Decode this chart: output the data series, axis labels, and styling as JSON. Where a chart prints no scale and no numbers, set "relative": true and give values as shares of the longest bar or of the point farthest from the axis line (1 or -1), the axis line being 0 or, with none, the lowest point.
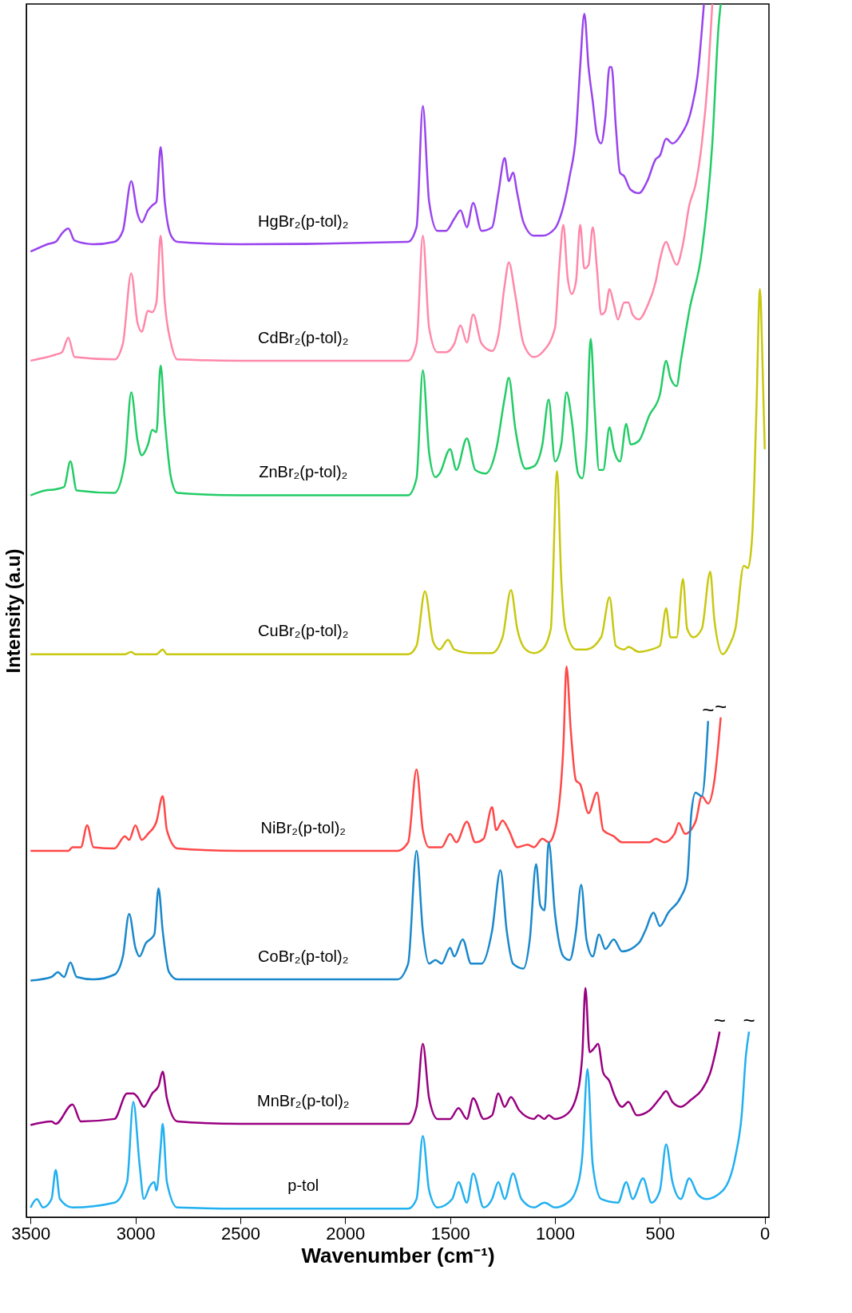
{
  "chart_data": {
    "type": "line",
    "relative": true,
    "xlabel": "Wavenumber (cm⁻¹)",
    "ylabel": "Intensity (a.u)",
    "xlim": [
      3520,
      -20
    ],
    "xticks": [
      3500,
      3000,
      2500,
      2000,
      1500,
      1000,
      500,
      0
    ],
    "grid": false,
    "legend": false,
    "marker": "none",
    "line_style": "solid",
    "series": [
      {
        "name": "HgBr₂(p-tol)₂",
        "color": "#9944ee",
        "x": [
          3500,
          3460,
          3420,
          3380,
          3350,
          3320,
          3290,
          3200,
          3100,
          3060,
          3020,
          2990,
          2970,
          2940,
          2920,
          2900,
          2880,
          2860,
          2830,
          2800,
          2500,
          1700,
          1660,
          1630,
          1600,
          1560,
          1520,
          1480,
          1450,
          1420,
          1390,
          1350,
          1300,
          1270,
          1240,
          1220,
          1200,
          1180,
          1150,
          1100,
          1060,
          1000,
          970,
          930,
          900,
          880,
          860,
          840,
          820,
          800,
          780,
          760,
          740,
          730,
          710,
          690,
          670,
          640,
          600,
          560,
          520,
          500,
          470,
          440,
          400,
          350,
          320,
          290
        ],
        "values": [
          0.796,
          0.799,
          0.802,
          0.804,
          0.811,
          0.815,
          0.805,
          0.802,
          0.804,
          0.813,
          0.854,
          0.827,
          0.82,
          0.83,
          0.834,
          0.837,
          0.882,
          0.837,
          0.809,
          0.804,
          0.802,
          0.804,
          0.816,
          0.916,
          0.837,
          0.813,
          0.813,
          0.823,
          0.83,
          0.816,
          0.836,
          0.813,
          0.816,
          0.844,
          0.873,
          0.854,
          0.861,
          0.844,
          0.82,
          0.809,
          0.809,
          0.815,
          0.827,
          0.858,
          0.892,
          0.948,
          0.992,
          0.948,
          0.92,
          0.892,
          0.885,
          0.906,
          0.948,
          0.948,
          0.899,
          0.861,
          0.858,
          0.847,
          0.844,
          0.854,
          0.872,
          0.875,
          0.889,
          0.885,
          0.892,
          0.913,
          0.941,
          1.0
        ]
      },
      {
        "name": "CdBr₂(p-tol)₂",
        "color": "#ff88aa",
        "x": [
          3500,
          3420,
          3380,
          3350,
          3320,
          3290,
          3100,
          3060,
          3020,
          2990,
          2970,
          2940,
          2920,
          2900,
          2880,
          2860,
          2830,
          2800,
          2500,
          1700,
          1660,
          1630,
          1600,
          1560,
          1520,
          1480,
          1450,
          1420,
          1390,
          1350,
          1300,
          1270,
          1240,
          1220,
          1190,
          1150,
          1100,
          1060,
          1000,
          980,
          960,
          940,
          920,
          900,
          880,
          860,
          840,
          820,
          800,
          780,
          760,
          740,
          720,
          700,
          670,
          650,
          630,
          600,
          560,
          520,
          500,
          470,
          450,
          420,
          390,
          360,
          330,
          300,
          270,
          250
        ],
        "values": [
          0.706,
          0.709,
          0.711,
          0.713,
          0.725,
          0.709,
          0.707,
          0.72,
          0.778,
          0.737,
          0.73,
          0.747,
          0.746,
          0.754,
          0.809,
          0.754,
          0.72,
          0.707,
          0.706,
          0.706,
          0.72,
          0.809,
          0.733,
          0.713,
          0.713,
          0.72,
          0.735,
          0.721,
          0.744,
          0.72,
          0.714,
          0.727,
          0.768,
          0.787,
          0.761,
          0.72,
          0.709,
          0.713,
          0.733,
          0.782,
          0.818,
          0.775,
          0.761,
          0.771,
          0.818,
          0.782,
          0.785,
          0.816,
          0.782,
          0.744,
          0.747,
          0.765,
          0.753,
          0.74,
          0.754,
          0.754,
          0.744,
          0.74,
          0.751,
          0.771,
          0.789,
          0.804,
          0.796,
          0.785,
          0.802,
          0.834,
          0.851,
          0.885,
          0.941,
          1.0
        ]
      },
      {
        "name": "ZnBr₂(p-tol)₂",
        "color": "#22cc66",
        "x": [
          3500,
          3430,
          3380,
          3340,
          3310,
          3280,
          3100,
          3050,
          3020,
          2990,
          2970,
          2940,
          2920,
          2900,
          2880,
          2860,
          2830,
          2800,
          2500,
          1700,
          1660,
          1630,
          1600,
          1570,
          1550,
          1500,
          1470,
          1420,
          1380,
          1330,
          1280,
          1240,
          1220,
          1190,
          1140,
          1100,
          1060,
          1030,
          1000,
          970,
          945,
          920,
          890,
          870,
          850,
          830,
          810,
          790,
          770,
          740,
          720,
          690,
          660,
          640,
          600,
          550,
          500,
          470,
          450,
          420,
          400,
          380,
          360,
          300,
          250,
          220,
          210
        ],
        "values": [
          0.595,
          0.599,
          0.6,
          0.602,
          0.623,
          0.599,
          0.597,
          0.623,
          0.68,
          0.64,
          0.628,
          0.637,
          0.649,
          0.647,
          0.702,
          0.657,
          0.609,
          0.597,
          0.595,
          0.595,
          0.609,
          0.698,
          0.63,
          0.61,
          0.613,
          0.633,
          0.616,
          0.642,
          0.616,
          0.613,
          0.633,
          0.675,
          0.692,
          0.651,
          0.617,
          0.619,
          0.637,
          0.674,
          0.623,
          0.637,
          0.68,
          0.657,
          0.613,
          0.609,
          0.642,
          0.724,
          0.664,
          0.616,
          0.616,
          0.651,
          0.633,
          0.623,
          0.654,
          0.637,
          0.64,
          0.661,
          0.678,
          0.706,
          0.692,
          0.685,
          0.706,
          0.727,
          0.747,
          0.796,
          0.885,
          0.982,
          1.0
        ]
      },
      {
        "name": "CuBr₂(p-tol)₂",
        "color": "#c8c810",
        "x": [
          3500,
          3050,
          3020,
          3000,
          2900,
          2870,
          2850,
          2500,
          1700,
          1660,
          1620,
          1580,
          1550,
          1510,
          1480,
          1400,
          1300,
          1250,
          1210,
          1180,
          1140,
          1100,
          1060,
          1020,
          990,
          970,
          950,
          900,
          850,
          780,
          740,
          710,
          670,
          650,
          600,
          540,
          500,
          470,
          450,
          420,
          390,
          370,
          340,
          300,
          260,
          240,
          200,
          170,
          140,
          100,
          80,
          60,
          40,
          23,
          10,
          0
        ],
        "values": [
          0.464,
          0.464,
          0.466,
          0.464,
          0.464,
          0.468,
          0.464,
          0.464,
          0.464,
          0.471,
          0.516,
          0.474,
          0.468,
          0.476,
          0.468,
          0.465,
          0.465,
          0.478,
          0.517,
          0.485,
          0.468,
          0.465,
          0.468,
          0.485,
          0.615,
          0.526,
          0.485,
          0.468,
          0.468,
          0.478,
          0.511,
          0.471,
          0.468,
          0.47,
          0.466,
          0.468,
          0.471,
          0.502,
          0.478,
          0.478,
          0.526,
          0.485,
          0.478,
          0.485,
          0.532,
          0.492,
          0.464,
          0.471,
          0.485,
          0.537,
          0.535,
          0.561,
          0.664,
          0.765,
          0.699,
          0.633
        ]
      },
      {
        "name": "NiBr₂(p-tol)₂",
        "color": "#ff4848",
        "x": [
          3500,
          3320,
          3300,
          3260,
          3230,
          3200,
          3100,
          3050,
          3030,
          3000,
          2970,
          2940,
          2900,
          2870,
          2850,
          2800,
          2500,
          1750,
          1700,
          1660,
          1630,
          1600,
          1540,
          1500,
          1470,
          1420,
          1380,
          1340,
          1300,
          1280,
          1250,
          1220,
          1180,
          1130,
          1100,
          1060,
          1030,
          1000,
          960,
          945,
          925,
          900,
          880,
          840,
          800,
          770,
          720,
          680,
          550,
          520,
          480,
          430,
          410,
          380,
          330,
          300,
          270,
          240,
          210
        ],
        "values": [
          0.302,
          0.302,
          0.305,
          0.305,
          0.323,
          0.305,
          0.304,
          0.314,
          0.311,
          0.323,
          0.311,
          0.316,
          0.326,
          0.347,
          0.319,
          0.304,
          0.302,
          0.302,
          0.309,
          0.369,
          0.319,
          0.305,
          0.305,
          0.316,
          0.309,
          0.326,
          0.309,
          0.312,
          0.338,
          0.319,
          0.327,
          0.319,
          0.305,
          0.307,
          0.305,
          0.312,
          0.309,
          0.319,
          0.388,
          0.454,
          0.402,
          0.36,
          0.357,
          0.333,
          0.35,
          0.319,
          0.314,
          0.309,
          0.309,
          0.312,
          0.309,
          0.316,
          0.325,
          0.316,
          0.326,
          0.347,
          0.341,
          0.36,
          0.412
        ]
      },
      {
        "name": "CoBr₂(p-tol)₂",
        "color": "#1a88cc",
        "x": [
          3500,
          3400,
          3370,
          3340,
          3310,
          3280,
          3200,
          3100,
          3060,
          3030,
          3000,
          2980,
          2950,
          2930,
          2910,
          2890,
          2870,
          2840,
          2800,
          2500,
          1750,
          1700,
          1660,
          1630,
          1600,
          1570,
          1540,
          1500,
          1480,
          1440,
          1400,
          1350,
          1300,
          1260,
          1230,
          1200,
          1150,
          1120,
          1090,
          1070,
          1050,
          1030,
          1000,
          960,
          930,
          900,
          875,
          850,
          820,
          790,
          760,
          720,
          680,
          600,
          570,
          530,
          500,
          460,
          400,
          370,
          350,
          330,
          300,
          270
        ],
        "values": [
          0.195,
          0.198,
          0.202,
          0.198,
          0.21,
          0.198,
          0.196,
          0.2,
          0.215,
          0.25,
          0.222,
          0.215,
          0.226,
          0.229,
          0.233,
          0.271,
          0.236,
          0.202,
          0.196,
          0.196,
          0.196,
          0.209,
          0.302,
          0.236,
          0.209,
          0.212,
          0.209,
          0.222,
          0.215,
          0.229,
          0.209,
          0.209,
          0.236,
          0.286,
          0.236,
          0.209,
          0.205,
          0.229,
          0.291,
          0.257,
          0.253,
          0.309,
          0.25,
          0.215,
          0.212,
          0.236,
          0.274,
          0.229,
          0.215,
          0.233,
          0.221,
          0.229,
          0.219,
          0.226,
          0.236,
          0.251,
          0.24,
          0.251,
          0.264,
          0.278,
          0.333,
          0.35,
          0.347,
          0.409
        ]
      },
      {
        "name": "MnBr₂(p-tol)₂",
        "color": "#990080",
        "x": [
          3500,
          3400,
          3380,
          3300,
          3260,
          3100,
          3040,
          3010,
          2990,
          2960,
          2920,
          2890,
          2870,
          2850,
          2800,
          2500,
          1700,
          1660,
          1630,
          1600,
          1560,
          1500,
          1460,
          1420,
          1390,
          1340,
          1300,
          1270,
          1240,
          1210,
          1170,
          1100,
          1080,
          1050,
          1030,
          1000,
          950,
          900,
          870,
          855,
          835,
          810,
          795,
          770,
          740,
          720,
          680,
          650,
          610,
          550,
          500,
          470,
          440,
          400,
          350,
          300,
          260,
          230,
          215
        ],
        "values": [
          0.076,
          0.079,
          0.077,
          0.093,
          0.079,
          0.081,
          0.102,
          0.102,
          0.099,
          0.091,
          0.102,
          0.108,
          0.12,
          0.098,
          0.079,
          0.077,
          0.077,
          0.091,
          0.143,
          0.098,
          0.081,
          0.081,
          0.09,
          0.081,
          0.098,
          0.081,
          0.084,
          0.102,
          0.091,
          0.099,
          0.088,
          0.081,
          0.084,
          0.081,
          0.084,
          0.081,
          0.084,
          0.098,
          0.133,
          0.189,
          0.136,
          0.14,
          0.143,
          0.119,
          0.112,
          0.102,
          0.091,
          0.095,
          0.084,
          0.088,
          0.098,
          0.104,
          0.095,
          0.091,
          0.097,
          0.105,
          0.119,
          0.14,
          0.153
        ]
      },
      {
        "name": "p-tol",
        "color": "#21b0f0",
        "x": [
          3500,
          3470,
          3440,
          3400,
          3380,
          3360,
          3300,
          3100,
          3040,
          3010,
          2980,
          2960,
          2930,
          2910,
          2900,
          2880,
          2870,
          2850,
          2800,
          2500,
          1700,
          1660,
          1630,
          1600,
          1560,
          1490,
          1460,
          1420,
          1390,
          1340,
          1300,
          1270,
          1240,
          1200,
          1160,
          1100,
          1050,
          1000,
          940,
          900,
          870,
          845,
          820,
          780,
          700,
          660,
          630,
          580,
          540,
          500,
          470,
          440,
          400,
          360,
          320,
          280,
          200,
          140,
          110,
          90,
          75
        ],
        "values": [
          0.008,
          0.015,
          0.008,
          0.015,
          0.039,
          0.015,
          0.008,
          0.012,
          0.029,
          0.095,
          0.043,
          0.015,
          0.026,
          0.029,
          0.022,
          0.057,
          0.077,
          0.029,
          0.008,
          0.007,
          0.007,
          0.015,
          0.067,
          0.022,
          0.008,
          0.015,
          0.029,
          0.012,
          0.036,
          0.008,
          0.015,
          0.029,
          0.015,
          0.036,
          0.015,
          0.008,
          0.012,
          0.008,
          0.012,
          0.022,
          0.05,
          0.122,
          0.043,
          0.015,
          0.012,
          0.029,
          0.015,
          0.032,
          0.012,
          0.022,
          0.06,
          0.029,
          0.015,
          0.032,
          0.019,
          0.015,
          0.022,
          0.05,
          0.084,
          0.133,
          0.153
        ]
      }
    ],
    "annotations": [
      {
        "text": "~",
        "x": 270,
        "y": 0.409
      },
      {
        "text": "~",
        "x": 210,
        "y": 0.412
      },
      {
        "text": "~",
        "x": 215,
        "y": 0.153
      },
      {
        "text": "~",
        "x": 75,
        "y": 0.153
      }
    ]
  }
}
